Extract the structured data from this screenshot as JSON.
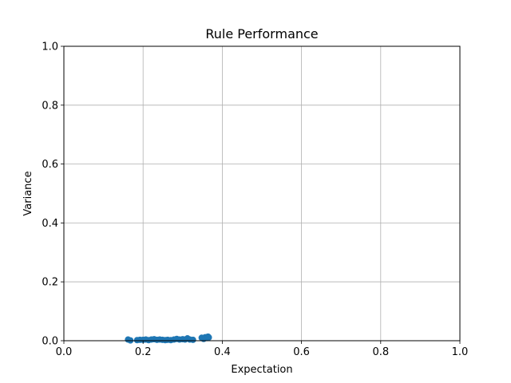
{
  "chart_data": {
    "type": "scatter",
    "title": "Rule Performance",
    "xlabel": "Expectation",
    "ylabel": "Variance",
    "xlim": [
      0.0,
      1.0
    ],
    "ylim": [
      0.0,
      1.0
    ],
    "xticks": [
      "0.0",
      "0.2",
      "0.4",
      "0.6",
      "0.8",
      "1.0"
    ],
    "yticks": [
      "0.0",
      "0.2",
      "0.4",
      "0.6",
      "0.8",
      "1.0"
    ],
    "grid": true,
    "marker_color": "#1f77b4",
    "series": [
      {
        "x": [
          0.162,
          0.168,
          0.185,
          0.192,
          0.2,
          0.207,
          0.214,
          0.221,
          0.228,
          0.235,
          0.242,
          0.249,
          0.256,
          0.262,
          0.27,
          0.278,
          0.285,
          0.292,
          0.3,
          0.306,
          0.312,
          0.318,
          0.326,
          0.348,
          0.353,
          0.357,
          0.361,
          0.364,
          0.366
        ],
        "y": [
          0.004,
          0.001,
          0.002,
          0.003,
          0.003,
          0.004,
          0.002,
          0.004,
          0.005,
          0.003,
          0.004,
          0.003,
          0.002,
          0.003,
          0.002,
          0.004,
          0.006,
          0.004,
          0.005,
          0.004,
          0.008,
          0.004,
          0.003,
          0.01,
          0.006,
          0.012,
          0.009,
          0.014,
          0.011
        ]
      }
    ]
  }
}
